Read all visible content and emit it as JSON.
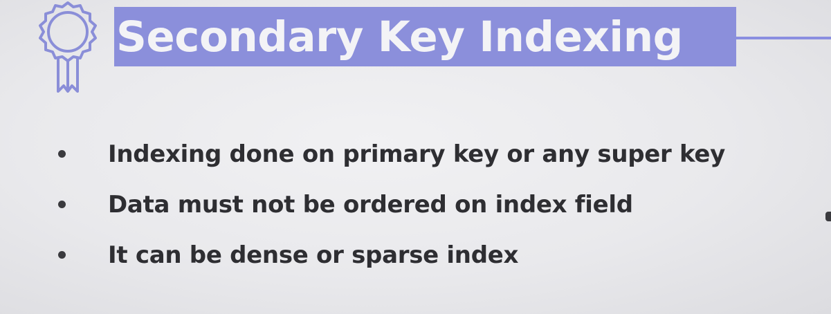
{
  "slide": {
    "title": "Secondary Key Indexing",
    "icon": "award-ribbon-icon",
    "accent_color": "#8b8fdb",
    "title_text_color": "#f3f3f6",
    "bullets": [
      "Indexing done on primary key or any super key",
      "Data must not be ordered on index field",
      "It can be dense or sparse index"
    ]
  }
}
